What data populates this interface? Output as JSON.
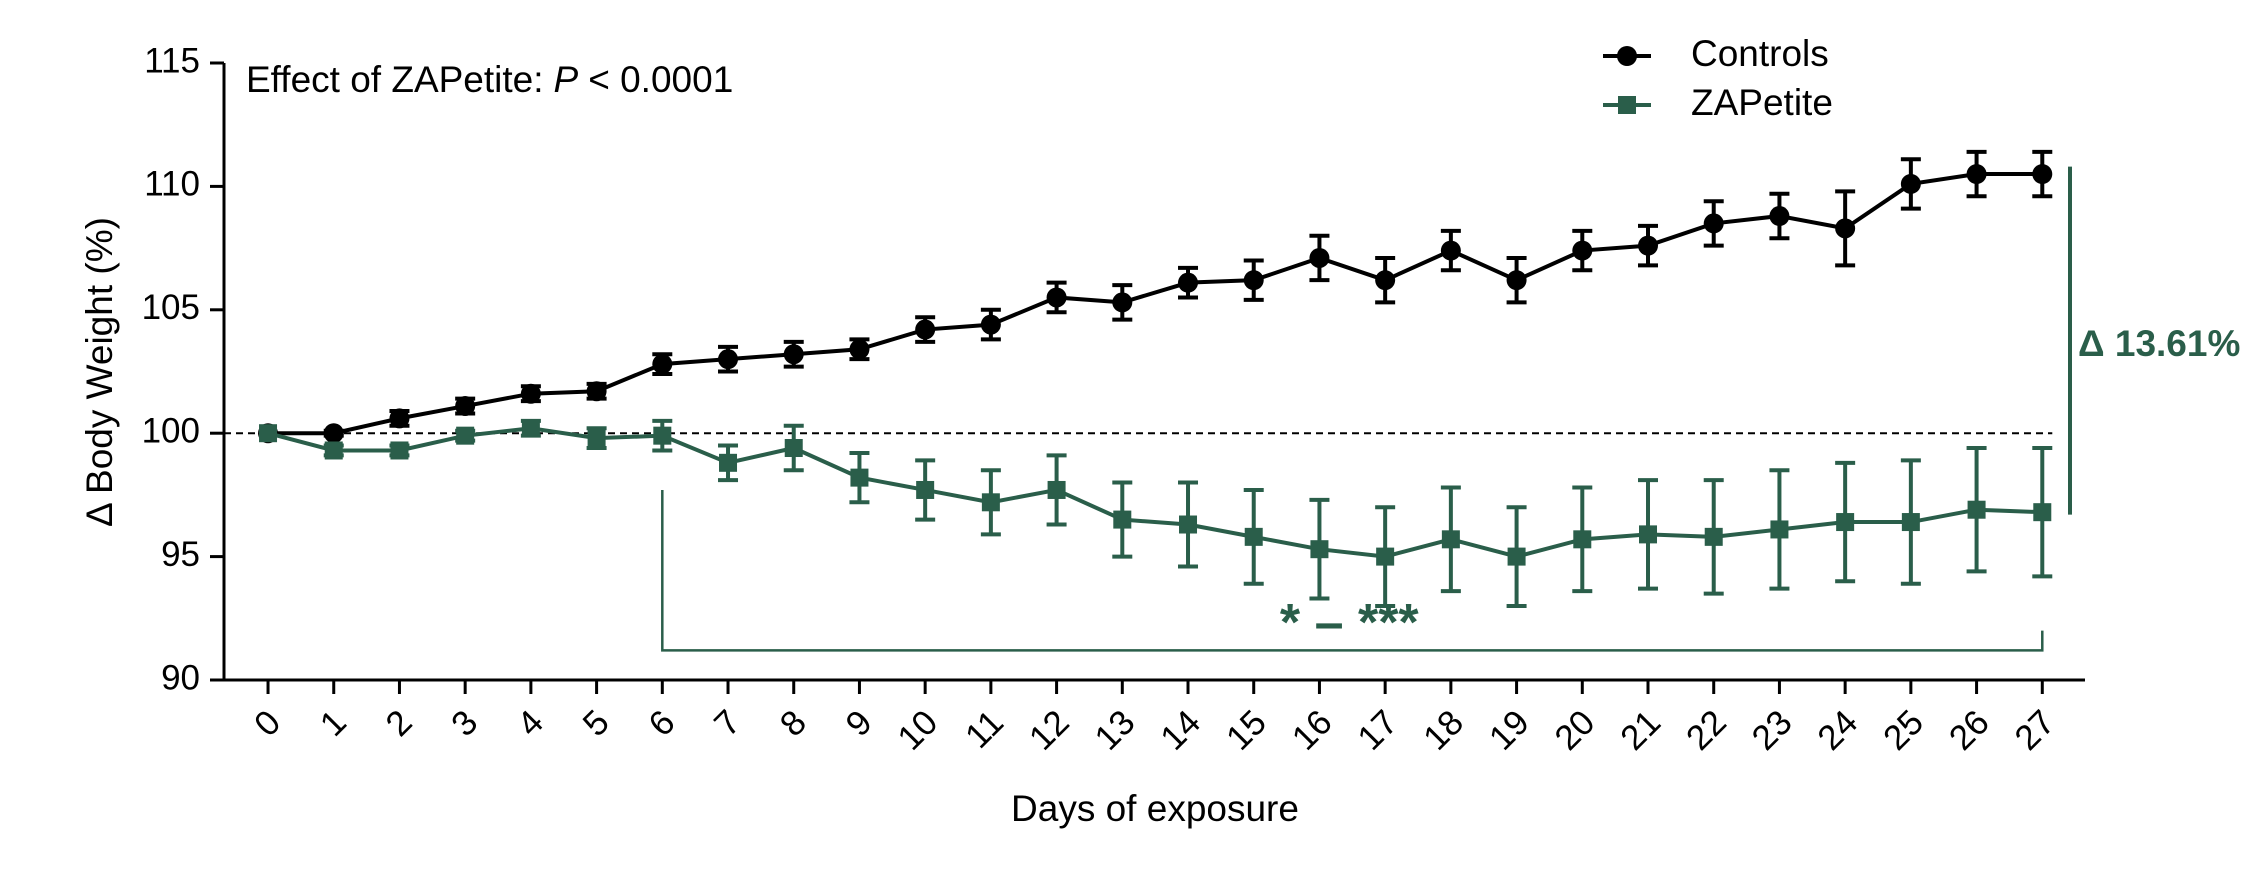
{
  "chart_data": {
    "type": "line",
    "stat_annotation": [
      "Effect of ZAPetite:",
      "P",
      "< 0.0001"
    ],
    "x_label": "Days of exposure",
    "y_label": "Δ Body Weight (%)",
    "x": [
      0,
      1,
      2,
      3,
      4,
      5,
      6,
      7,
      8,
      9,
      10,
      11,
      12,
      13,
      14,
      15,
      16,
      17,
      18,
      19,
      20,
      21,
      22,
      23,
      24,
      25,
      26,
      27
    ],
    "series": [
      {
        "name": "Controls",
        "color": "#000000",
        "marker": "circle",
        "values": [
          100,
          100,
          100.6,
          101.1,
          101.6,
          101.7,
          102.8,
          103.0,
          103.2,
          103.4,
          104.2,
          104.4,
          105.5,
          105.3,
          106.1,
          106.2,
          107.1,
          106.2,
          107.4,
          106.2,
          107.4,
          107.6,
          108.5,
          108.8,
          108.3,
          110.1,
          110.5,
          110.5
        ],
        "errors": [
          0,
          0.1,
          0.3,
          0.3,
          0.3,
          0.3,
          0.4,
          0.5,
          0.5,
          0.4,
          0.5,
          0.6,
          0.6,
          0.7,
          0.6,
          0.8,
          0.9,
          0.9,
          0.8,
          0.9,
          0.8,
          0.8,
          0.9,
          0.9,
          1.5,
          1.0,
          0.9,
          0.9
        ]
      },
      {
        "name": "ZAPetite",
        "color": "#2a5e4a",
        "marker": "square",
        "values": [
          100,
          99.3,
          99.3,
          99.9,
          100.2,
          99.8,
          99.9,
          98.8,
          99.4,
          98.2,
          97.7,
          97.2,
          97.7,
          96.5,
          96.3,
          95.8,
          95.3,
          95.0,
          95.7,
          95.0,
          95.7,
          95.9,
          95.8,
          96.1,
          96.4,
          96.4,
          96.9,
          96.8
        ],
        "errors": [
          0,
          0.2,
          0.2,
          0.2,
          0.3,
          0.4,
          0.6,
          0.7,
          0.9,
          1.0,
          1.2,
          1.3,
          1.4,
          1.5,
          1.7,
          1.9,
          2.0,
          2.0,
          2.1,
          2.0,
          2.1,
          2.2,
          2.3,
          2.4,
          2.4,
          2.5,
          2.5,
          2.6
        ]
      }
    ],
    "xlim": [
      -0.67,
      27.65
    ],
    "xticks": [
      0,
      1,
      2,
      3,
      4,
      5,
      6,
      7,
      8,
      9,
      10,
      11,
      12,
      13,
      14,
      15,
      16,
      17,
      18,
      19,
      20,
      21,
      22,
      23,
      24,
      25,
      26,
      27
    ],
    "ylim": [
      90,
      115
    ],
    "yticks": [
      90,
      95,
      100,
      105,
      110,
      115
    ],
    "reference_line": 100,
    "significance": {
      "label": "* – ***",
      "from": 6,
      "to": 27
    },
    "difference_label": "Δ 13.61%",
    "legend": "top-right"
  }
}
